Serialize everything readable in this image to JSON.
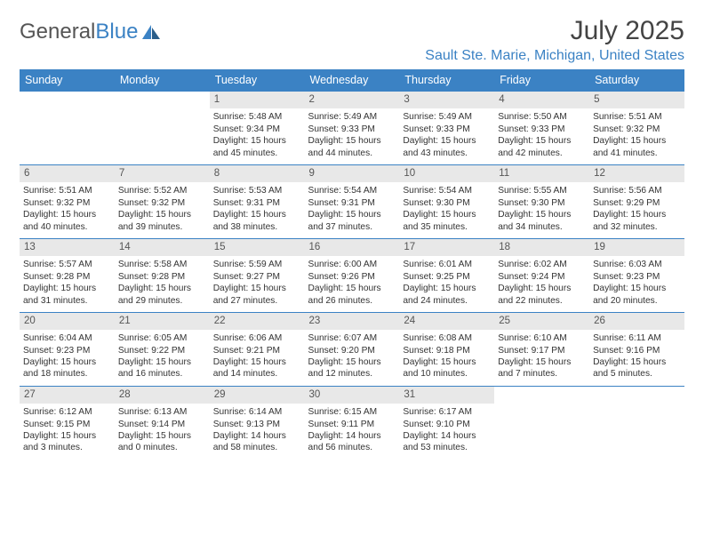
{
  "brand": {
    "part1": "General",
    "part2": "Blue"
  },
  "title": "July 2025",
  "location": "Sault Ste. Marie, Michigan, United States",
  "colors": {
    "accent": "#3b82c4",
    "header_text": "#ffffff",
    "daynum_bg": "#e8e8e8",
    "body_text": "#333333",
    "title_text": "#444444",
    "background": "#ffffff"
  },
  "dayHeaders": [
    "Sunday",
    "Monday",
    "Tuesday",
    "Wednesday",
    "Thursday",
    "Friday",
    "Saturday"
  ],
  "weeks": [
    [
      {
        "n": "",
        "sr": "",
        "ss": "",
        "dl": ""
      },
      {
        "n": "",
        "sr": "",
        "ss": "",
        "dl": ""
      },
      {
        "n": "1",
        "sr": "5:48 AM",
        "ss": "9:34 PM",
        "dl": "15 hours and 45 minutes."
      },
      {
        "n": "2",
        "sr": "5:49 AM",
        "ss": "9:33 PM",
        "dl": "15 hours and 44 minutes."
      },
      {
        "n": "3",
        "sr": "5:49 AM",
        "ss": "9:33 PM",
        "dl": "15 hours and 43 minutes."
      },
      {
        "n": "4",
        "sr": "5:50 AM",
        "ss": "9:33 PM",
        "dl": "15 hours and 42 minutes."
      },
      {
        "n": "5",
        "sr": "5:51 AM",
        "ss": "9:32 PM",
        "dl": "15 hours and 41 minutes."
      }
    ],
    [
      {
        "n": "6",
        "sr": "5:51 AM",
        "ss": "9:32 PM",
        "dl": "15 hours and 40 minutes."
      },
      {
        "n": "7",
        "sr": "5:52 AM",
        "ss": "9:32 PM",
        "dl": "15 hours and 39 minutes."
      },
      {
        "n": "8",
        "sr": "5:53 AM",
        "ss": "9:31 PM",
        "dl": "15 hours and 38 minutes."
      },
      {
        "n": "9",
        "sr": "5:54 AM",
        "ss": "9:31 PM",
        "dl": "15 hours and 37 minutes."
      },
      {
        "n": "10",
        "sr": "5:54 AM",
        "ss": "9:30 PM",
        "dl": "15 hours and 35 minutes."
      },
      {
        "n": "11",
        "sr": "5:55 AM",
        "ss": "9:30 PM",
        "dl": "15 hours and 34 minutes."
      },
      {
        "n": "12",
        "sr": "5:56 AM",
        "ss": "9:29 PM",
        "dl": "15 hours and 32 minutes."
      }
    ],
    [
      {
        "n": "13",
        "sr": "5:57 AM",
        "ss": "9:28 PM",
        "dl": "15 hours and 31 minutes."
      },
      {
        "n": "14",
        "sr": "5:58 AM",
        "ss": "9:28 PM",
        "dl": "15 hours and 29 minutes."
      },
      {
        "n": "15",
        "sr": "5:59 AM",
        "ss": "9:27 PM",
        "dl": "15 hours and 27 minutes."
      },
      {
        "n": "16",
        "sr": "6:00 AM",
        "ss": "9:26 PM",
        "dl": "15 hours and 26 minutes."
      },
      {
        "n": "17",
        "sr": "6:01 AM",
        "ss": "9:25 PM",
        "dl": "15 hours and 24 minutes."
      },
      {
        "n": "18",
        "sr": "6:02 AM",
        "ss": "9:24 PM",
        "dl": "15 hours and 22 minutes."
      },
      {
        "n": "19",
        "sr": "6:03 AM",
        "ss": "9:23 PM",
        "dl": "15 hours and 20 minutes."
      }
    ],
    [
      {
        "n": "20",
        "sr": "6:04 AM",
        "ss": "9:23 PM",
        "dl": "15 hours and 18 minutes."
      },
      {
        "n": "21",
        "sr": "6:05 AM",
        "ss": "9:22 PM",
        "dl": "15 hours and 16 minutes."
      },
      {
        "n": "22",
        "sr": "6:06 AM",
        "ss": "9:21 PM",
        "dl": "15 hours and 14 minutes."
      },
      {
        "n": "23",
        "sr": "6:07 AM",
        "ss": "9:20 PM",
        "dl": "15 hours and 12 minutes."
      },
      {
        "n": "24",
        "sr": "6:08 AM",
        "ss": "9:18 PM",
        "dl": "15 hours and 10 minutes."
      },
      {
        "n": "25",
        "sr": "6:10 AM",
        "ss": "9:17 PM",
        "dl": "15 hours and 7 minutes."
      },
      {
        "n": "26",
        "sr": "6:11 AM",
        "ss": "9:16 PM",
        "dl": "15 hours and 5 minutes."
      }
    ],
    [
      {
        "n": "27",
        "sr": "6:12 AM",
        "ss": "9:15 PM",
        "dl": "15 hours and 3 minutes."
      },
      {
        "n": "28",
        "sr": "6:13 AM",
        "ss": "9:14 PM",
        "dl": "15 hours and 0 minutes."
      },
      {
        "n": "29",
        "sr": "6:14 AM",
        "ss": "9:13 PM",
        "dl": "14 hours and 58 minutes."
      },
      {
        "n": "30",
        "sr": "6:15 AM",
        "ss": "9:11 PM",
        "dl": "14 hours and 56 minutes."
      },
      {
        "n": "31",
        "sr": "6:17 AM",
        "ss": "9:10 PM",
        "dl": "14 hours and 53 minutes."
      },
      {
        "n": "",
        "sr": "",
        "ss": "",
        "dl": ""
      },
      {
        "n": "",
        "sr": "",
        "ss": "",
        "dl": ""
      }
    ]
  ],
  "labels": {
    "sunrise": "Sunrise: ",
    "sunset": "Sunset: ",
    "daylight": "Daylight: "
  }
}
